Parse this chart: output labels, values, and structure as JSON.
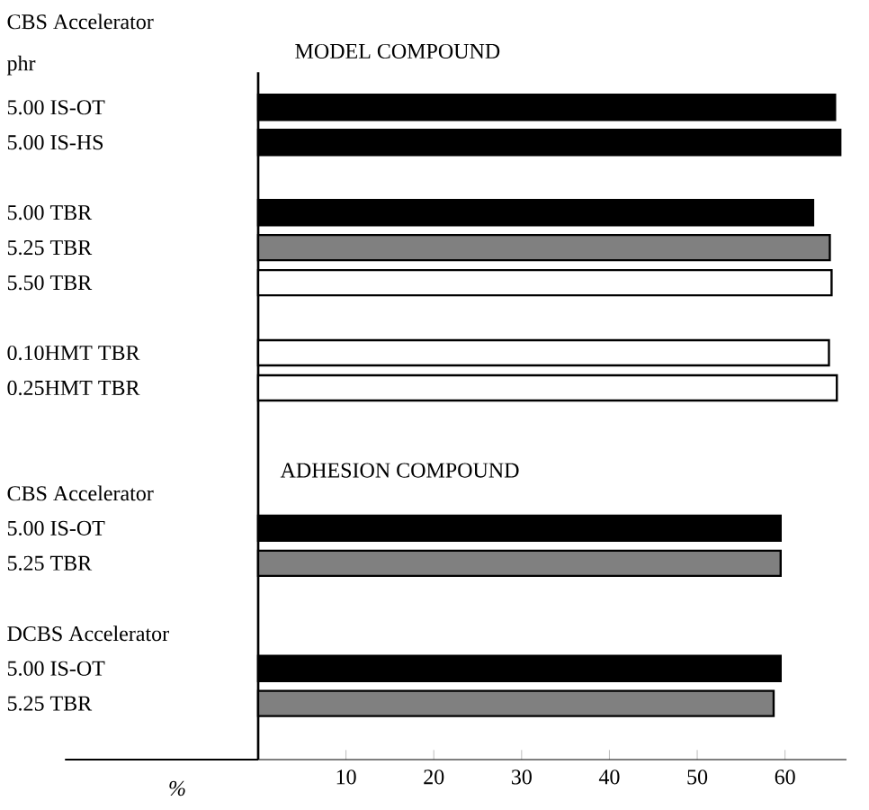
{
  "chart_data": {
    "type": "bar",
    "orientation": "horizontal",
    "categories": [
      "5.00 IS-OT",
      "5.00 IS-HS",
      null,
      "5.00 TBR",
      "5.25 TBR",
      "5.50 TBR",
      null,
      "0.10HMT TBR",
      "0.25HMT TBR",
      null,
      null,
      "CBS Accelerator",
      "5.00 IS-OT",
      "5.25 TBR",
      null,
      "DCBS Accelerator",
      "5.00 IS-OT",
      "5.25 TBR"
    ],
    "values": [
      65.7,
      66.3,
      null,
      63.2,
      65.1,
      65.3,
      null,
      65.0,
      65.9,
      null,
      null,
      null,
      59.5,
      59.5,
      null,
      null,
      59.5,
      58.7
    ],
    "colors": [
      "#000000",
      "#000000",
      null,
      "#000000",
      "#808080",
      "#ffffff",
      null,
      "#ffffff",
      "#ffffff",
      null,
      null,
      null,
      "#000000",
      "#808080",
      null,
      null,
      "#000000",
      "#808080"
    ],
    "xlim": [
      0,
      67
    ],
    "xticks": [
      10,
      20,
      30,
      40,
      50,
      60
    ],
    "xlabel": "%",
    "annotations": [
      "CBS Accelerator",
      "phr",
      "MODEL COMPOUND",
      "ADHESION COMPOUND"
    ]
  }
}
